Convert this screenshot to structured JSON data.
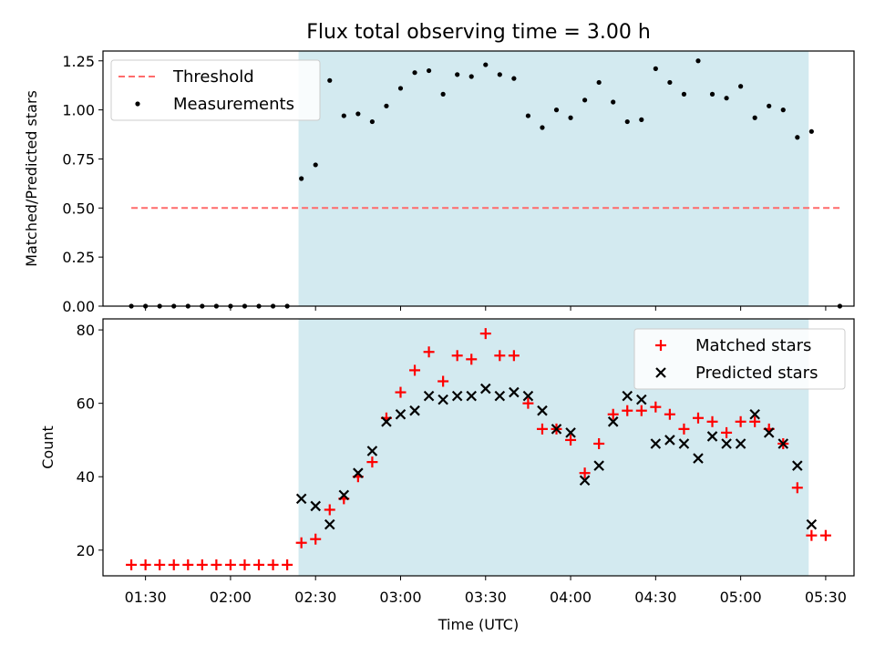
{
  "chart_data": [
    {
      "type": "scatter",
      "title": "Flux total observing time = 3.00 h",
      "xlabel": "",
      "ylabel": "Matched/Predicted stars",
      "xlim": [
        75,
        340
      ],
      "ylim": [
        0,
        1.3
      ],
      "yticks": [
        0.0,
        0.25,
        0.5,
        0.75,
        1.0,
        1.25
      ],
      "ytick_labels": [
        "0.00",
        "0.25",
        "0.50",
        "0.75",
        "1.00",
        "1.25"
      ],
      "shaded_region": {
        "from": 144,
        "to": 324,
        "color": "#d3eaf0"
      },
      "legend": {
        "placement": "top-left",
        "entries": [
          "Threshold",
          "Measurements"
        ]
      },
      "threshold": {
        "name": "Threshold",
        "value": 0.5,
        "x_from": 85,
        "x_to": 335,
        "color": "#ff6b6b"
      },
      "series": [
        {
          "name": "Measurements",
          "color": "#000000",
          "x": [
            85,
            90,
            95,
            100,
            105,
            110,
            115,
            120,
            125,
            130,
            135,
            140,
            145,
            150,
            155,
            160,
            165,
            170,
            175,
            180,
            185,
            190,
            195,
            200,
            205,
            210,
            215,
            220,
            225,
            230,
            235,
            240,
            245,
            250,
            255,
            260,
            265,
            270,
            275,
            280,
            285,
            290,
            295,
            300,
            305,
            310,
            315,
            320,
            325,
            335
          ],
          "y": [
            0,
            0,
            0,
            0,
            0,
            0,
            0,
            0,
            0,
            0,
            0,
            0,
            0.65,
            0.72,
            1.15,
            0.97,
            0.98,
            0.94,
            1.02,
            1.11,
            1.19,
            1.2,
            1.08,
            1.18,
            1.17,
            1.23,
            1.18,
            1.16,
            0.97,
            0.91,
            1.0,
            0.96,
            1.05,
            1.14,
            1.04,
            0.94,
            0.95,
            1.21,
            1.14,
            1.08,
            1.25,
            1.08,
            1.06,
            1.12,
            0.96,
            1.02,
            1.0,
            0.86,
            0.89,
            0
          ]
        }
      ]
    },
    {
      "type": "scatter",
      "title": "",
      "xlabel": "Time (UTC)",
      "ylabel": "Count",
      "xlim": [
        75,
        340
      ],
      "ylim": [
        13,
        83
      ],
      "yticks": [
        20,
        40,
        60,
        80
      ],
      "ytick_labels": [
        "20",
        "40",
        "60",
        "80"
      ],
      "xticks": [
        90,
        120,
        150,
        180,
        210,
        240,
        270,
        300,
        330
      ],
      "xtick_labels": [
        "01:30",
        "02:00",
        "02:30",
        "03:00",
        "03:30",
        "04:00",
        "04:30",
        "05:00",
        "05:30"
      ],
      "shaded_region": {
        "from": 144,
        "to": 324,
        "color": "#d3eaf0"
      },
      "legend": {
        "placement": "top-right",
        "entries": [
          "Matched stars",
          "Predicted stars"
        ]
      },
      "series": [
        {
          "name": "Matched stars",
          "marker": "plus",
          "color": "#ff0000",
          "x": [
            85,
            90,
            95,
            100,
            105,
            110,
            115,
            120,
            125,
            130,
            135,
            140,
            145,
            150,
            155,
            160,
            165,
            170,
            175,
            180,
            185,
            190,
            195,
            200,
            205,
            210,
            215,
            220,
            225,
            230,
            235,
            240,
            245,
            250,
            255,
            260,
            265,
            270,
            275,
            280,
            285,
            290,
            295,
            300,
            305,
            310,
            315,
            320,
            325,
            330
          ],
          "y": [
            16,
            16,
            16,
            16,
            16,
            16,
            16,
            16,
            16,
            16,
            16,
            16,
            22,
            23,
            31,
            34,
            40,
            44,
            56,
            63,
            69,
            74,
            66,
            73,
            72,
            79,
            73,
            73,
            60,
            53,
            53,
            50,
            41,
            49,
            57,
            58,
            58,
            59,
            57,
            53,
            56,
            55,
            52,
            55,
            55,
            53,
            49,
            37,
            24,
            24
          ]
        },
        {
          "name": "Predicted stars",
          "marker": "x",
          "color": "#000000",
          "x": [
            145,
            150,
            155,
            160,
            165,
            170,
            175,
            180,
            185,
            190,
            195,
            200,
            205,
            210,
            215,
            220,
            225,
            230,
            235,
            240,
            245,
            250,
            255,
            260,
            265,
            270,
            275,
            280,
            285,
            290,
            295,
            300,
            305,
            310,
            315,
            320,
            325
          ],
          "y": [
            34,
            32,
            27,
            35,
            41,
            47,
            55,
            57,
            58,
            62,
            61,
            62,
            62,
            64,
            62,
            63,
            62,
            58,
            53,
            52,
            39,
            43,
            55,
            62,
            61,
            49,
            50,
            49,
            45,
            51,
            49,
            49,
            57,
            52,
            49,
            43,
            27
          ]
        }
      ]
    }
  ]
}
